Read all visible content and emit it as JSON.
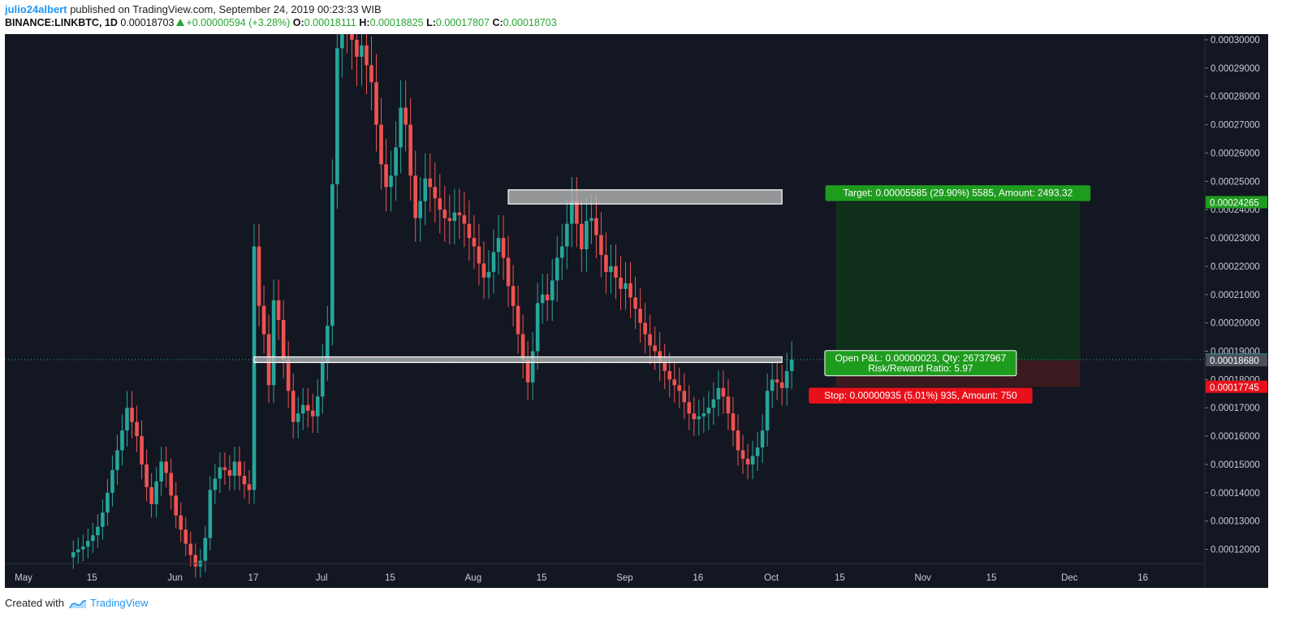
{
  "header": {
    "username": "julio24albert",
    "published": "published on TradingView.com, September 24, 2019 00:23:33 WIB",
    "symbol": "BINANCE:LINKBTC, 1D",
    "last": "0.00018703",
    "change": "+0.00000594 (+3.28%)",
    "o_label": "O:",
    "o_value": "0.00018111",
    "h_label": "H:",
    "h_value": "0.00018825",
    "l_label": "L:",
    "l_value": "0.00017807",
    "c_label": "C:",
    "c_value": "0.00018703"
  },
  "footer": {
    "created_with": "Created with",
    "brand": "TradingView"
  },
  "colors": {
    "background": "#131722",
    "up": "#26a69a",
    "down": "#ef5350",
    "target_zone": "#0f2f1b",
    "stop_zone": "#3a1a1e",
    "target_label": "#1e9c1e",
    "stop_label": "#e8111b"
  },
  "chart_data": {
    "type": "candlestick",
    "ylim": [
      0.000115,
      0.000302
    ],
    "y_ticks": [
      "0.00030000",
      "0.00029000",
      "0.00028000",
      "0.00027000",
      "0.00026000",
      "0.00025000",
      "0.00024000",
      "0.00023000",
      "0.00022000",
      "0.00021000",
      "0.00020000",
      "0.00019000",
      "0.00018000",
      "0.00017000",
      "0.00016000",
      "0.00015000",
      "0.00014000",
      "0.00013000",
      "0.00012000"
    ],
    "x_ticks": [
      "15",
      "May",
      "15",
      "Jun",
      "17",
      "Jul",
      "15",
      "Aug",
      "15",
      "Sep",
      "16",
      "Oct",
      "15",
      "Nov",
      "15",
      "Dec",
      "16"
    ],
    "candles": {
      "start": "2019-05-14",
      "close": [
        0.000119,
        0.00012,
        0.000121,
        0.000123,
        0.000125,
        0.000128,
        0.000133,
        0.00014,
        0.000148,
        0.000155,
        0.000162,
        0.00017,
        0.000165,
        0.00016,
        0.00015,
        0.000142,
        0.000136,
        0.000144,
        0.000151,
        0.000147,
        0.000139,
        0.000132,
        0.000127,
        0.000122,
        0.000118,
        0.000114,
        0.000116,
        0.000124,
        0.000141,
        0.000145,
        0.000149,
        0.000148,
        0.000146,
        0.000151,
        0.000146,
        0.000143,
        0.000141,
        0.000227,
        0.000206,
        0.000196,
        0.000178,
        0.000208,
        0.000201,
        0.000187,
        0.000176,
        0.000165,
        0.000168,
        0.000171,
        0.000169,
        0.000167,
        0.000174,
        0.000186,
        0.000199,
        0.000249,
        0.000297,
        0.00031,
        0.000306,
        0.0003,
        0.000294,
        0.000298,
        0.000291,
        0.000285,
        0.00027,
        0.000256,
        0.000248,
        0.000252,
        0.000262,
        0.000276,
        0.00027,
        0.000252,
        0.000237,
        0.000243,
        0.000251,
        0.000248,
        0.000244,
        0.00024,
        0.000237,
        0.000236,
        0.000239,
        0.000238,
        0.000235,
        0.00023,
        0.000227,
        0.000221,
        0.000216,
        0.000218,
        0.000225,
        0.00023,
        0.000223,
        0.000213,
        0.000206,
        0.000196,
        0.000187,
        0.000179,
        0.00019,
        0.000207,
        0.00021,
        0.000208,
        0.000215,
        0.000223,
        0.000227,
        0.000235,
        0.000243,
        0.000235,
        0.000226,
        0.000236,
        0.000237,
        0.000231,
        0.000224,
        0.000218,
        0.00022,
        0.000216,
        0.000212,
        0.000214,
        0.000209,
        0.000205,
        0.0002,
        0.000196,
        0.000192,
        0.00019,
        0.000186,
        0.000183,
        0.00018,
        0.000178,
        0.000176,
        0.000172,
        0.000168,
        0.000166,
        0.000167,
        0.000168,
        0.00017,
        0.000173,
        0.000177,
        0.000174,
        0.000168,
        0.000162,
        0.000155,
        0.000152,
        0.00015,
        0.000153,
        0.000156,
        0.000162,
        0.000176,
        0.00018,
        0.000179,
        0.000177,
        0.000183,
        0.000187
      ]
    },
    "annotations": {
      "resistance_zone": {
        "from": 0.000242,
        "to": 0.000247,
        "x_from": "2019-08-11",
        "x_to": "2019-10-06"
      },
      "support_zone": {
        "from": 0.000186,
        "to": 0.000188,
        "x_from": "2019-06-20",
        "x_to": "2019-10-06"
      },
      "target_price": 0.00024265,
      "entry_price": 0.0001868,
      "stop_price": 0.00017745,
      "last_price": 0.00018703,
      "position_x_from": "2019-10-17",
      "position_x_to": "2019-12-06",
      "price_labels": {
        "target": "0.00024265",
        "last": "0.00018703",
        "entry": "0.00018680",
        "stop": "0.00017745"
      },
      "target_text": "Target: 0.00005585 (29.90%) 5585, Amount: 2493.32",
      "pnl_text": "Open P&L: 0.00000023, Qty: 26737967",
      "rr_text": "Risk/Reward Ratio: 5.97",
      "stop_text": "Stop: 0.00000935 (5.01%) 935, Amount: 750"
    }
  }
}
